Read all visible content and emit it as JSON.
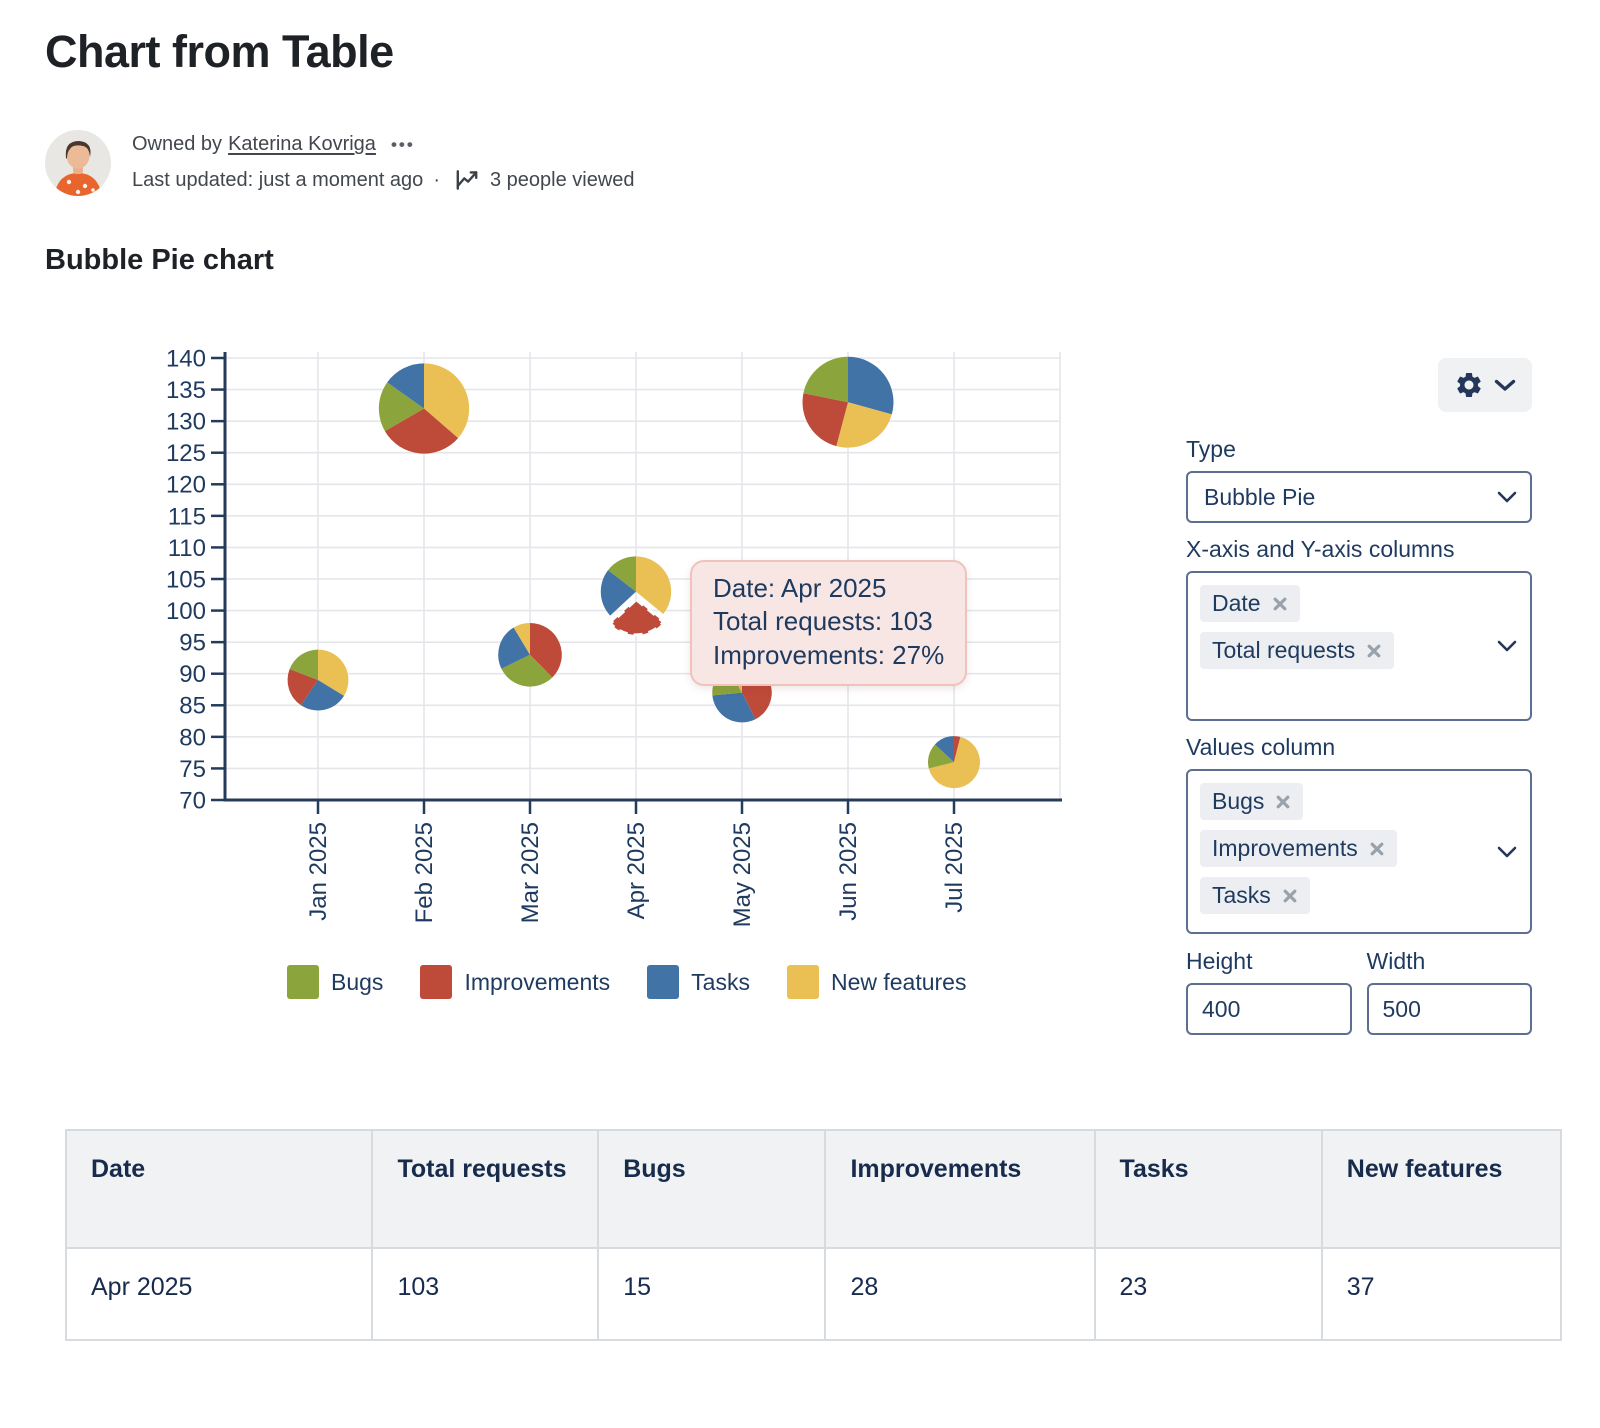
{
  "page": {
    "title": "Chart from Table"
  },
  "byline": {
    "owned_by": "Owned by",
    "owner": "Katerina Kovriga",
    "more": "•••",
    "last_updated": "Last updated: just a moment ago",
    "dot": "·",
    "views": "3 people viewed"
  },
  "section": {
    "title": "Bubble Pie chart"
  },
  "chart_data": {
    "type": "bubble-pie",
    "title": "Bubble Pie chart",
    "x_column": "Date",
    "y_column": "Total requests",
    "ylim": [
      70,
      140
    ],
    "ystep": 5,
    "grid": true,
    "x_categories": [
      "Jan 2025",
      "Feb 2025",
      "Mar 2025",
      "Apr 2025",
      "May 2025",
      "Jun 2025",
      "Jul 2025"
    ],
    "colors": {
      "Bugs": "#8BA43C",
      "Improvements": "#BE4A39",
      "Tasks": "#4173A6",
      "New features": "#EAC054"
    },
    "legend": [
      {
        "label": "Bugs",
        "color": "#8BA43C"
      },
      {
        "label": "Improvements",
        "color": "#BE4A39"
      },
      {
        "label": "Tasks",
        "color": "#4173A6"
      },
      {
        "label": "New features",
        "color": "#EAC054"
      }
    ],
    "points": [
      {
        "x": "Jan 2025",
        "total": 89,
        "slices": [
          {
            "name": "New features",
            "value": 30
          },
          {
            "name": "Tasks",
            "value": 23
          },
          {
            "name": "Improvements",
            "value": 19
          },
          {
            "name": "Bugs",
            "value": 17
          }
        ]
      },
      {
        "x": "Feb 2025",
        "total": 132,
        "slices": [
          {
            "name": "New features",
            "value": 48
          },
          {
            "name": "Improvements",
            "value": 40
          },
          {
            "name": "Bugs",
            "value": 24
          },
          {
            "name": "Tasks",
            "value": 20
          }
        ]
      },
      {
        "x": "Mar 2025",
        "total": 93,
        "slices": [
          {
            "name": "Improvements",
            "value": 35
          },
          {
            "name": "Bugs",
            "value": 28
          },
          {
            "name": "Tasks",
            "value": 22
          },
          {
            "name": "New features",
            "value": 8
          }
        ]
      },
      {
        "x": "Apr 2025",
        "total": 103,
        "slices": [
          {
            "name": "New features",
            "value": 37
          },
          {
            "name": "Improvements",
            "value": 28,
            "exploded": true
          },
          {
            "name": "Tasks",
            "value": 23
          },
          {
            "name": "Bugs",
            "value": 15
          }
        ]
      },
      {
        "x": "May 2025",
        "total": 87,
        "slices": [
          {
            "name": "Improvements",
            "value": 37
          },
          {
            "name": "Tasks",
            "value": 27
          },
          {
            "name": "Bugs",
            "value": 16
          },
          {
            "name": "New features",
            "value": 7
          }
        ]
      },
      {
        "x": "Jun 2025",
        "total": 133,
        "slices": [
          {
            "name": "Tasks",
            "value": 39
          },
          {
            "name": "New features",
            "value": 33
          },
          {
            "name": "Improvements",
            "value": 32
          },
          {
            "name": "Bugs",
            "value": 29
          }
        ]
      },
      {
        "x": "Jul 2025",
        "total": 76,
        "slices": [
          {
            "name": "Improvements",
            "value": 3
          },
          {
            "name": "New features",
            "value": 51
          },
          {
            "name": "Bugs",
            "value": 12
          },
          {
            "name": "Tasks",
            "value": 10
          }
        ]
      }
    ]
  },
  "tooltip": {
    "line1": "Date: Apr 2025",
    "line2": "Total requests: 103",
    "line3": "Improvements: 27%"
  },
  "panel": {
    "type_label": "Type",
    "type_value": "Bubble Pie",
    "axis_label": "X-axis and Y-axis columns",
    "axis_chips": [
      "Date",
      "Total requests"
    ],
    "values_label": "Values column",
    "values_chips": [
      "Bugs",
      "Improvements",
      "Tasks"
    ],
    "height_label": "Height",
    "height_value": "400",
    "width_label": "Width",
    "width_value": "500"
  },
  "table": {
    "headers": [
      "Date",
      "Total requests",
      "Bugs",
      "Improvements",
      "Tasks",
      "New features"
    ],
    "rows": [
      [
        "Apr 2025",
        "103",
        "15",
        "28",
        "23",
        "37"
      ]
    ]
  }
}
